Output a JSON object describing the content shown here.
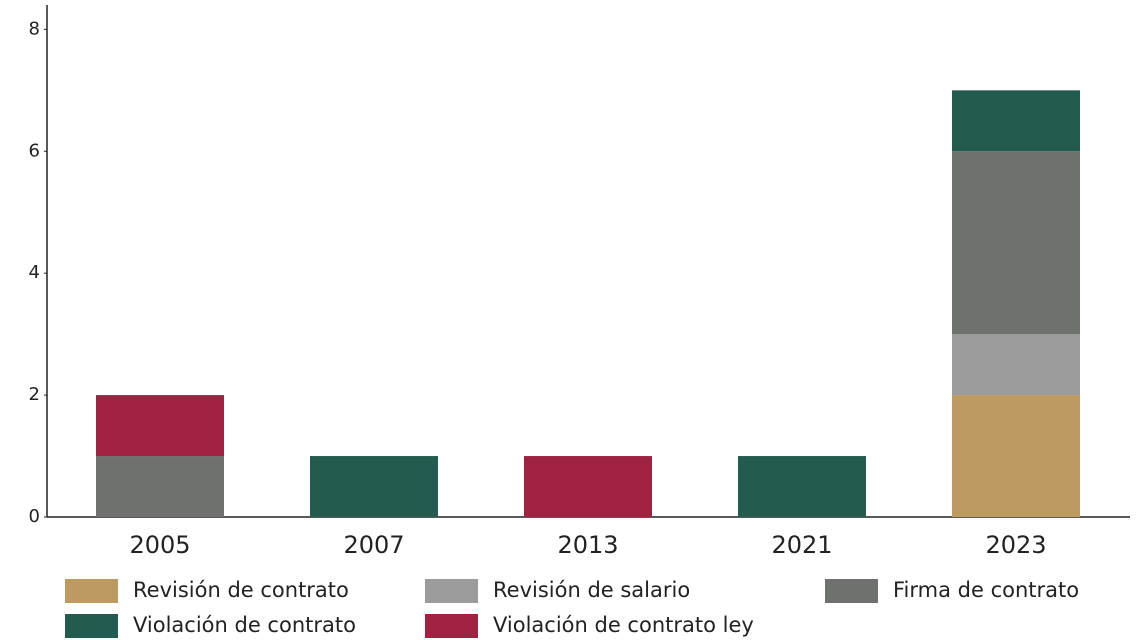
{
  "chart_data": {
    "type": "stacked_bar",
    "categories": [
      "2005",
      "2007",
      "2013",
      "2021",
      "2023"
    ],
    "series": [
      {
        "name": "Revisión de contrato",
        "color": "#bd9a5f",
        "values": [
          0,
          0,
          0,
          0,
          2
        ]
      },
      {
        "name": "Revisión de salario",
        "color": "#9b9b9b",
        "values": [
          0,
          0,
          0,
          0,
          1
        ]
      },
      {
        "name": "Firma de contrato",
        "color": "#6f716f",
        "values": [
          1,
          0,
          0,
          0,
          3
        ]
      },
      {
        "name": "Violación de contrato",
        "color": "#235c4f",
        "values": [
          0,
          1,
          0,
          1,
          1
        ]
      },
      {
        "name": "Violación de contrato ley",
        "color": "#9f2241",
        "values": [
          1,
          0,
          1,
          0,
          0
        ]
      }
    ],
    "ylim": [
      0,
      8.4
    ],
    "yticks": [
      0,
      2,
      4,
      6,
      8
    ],
    "grid": false
  }
}
